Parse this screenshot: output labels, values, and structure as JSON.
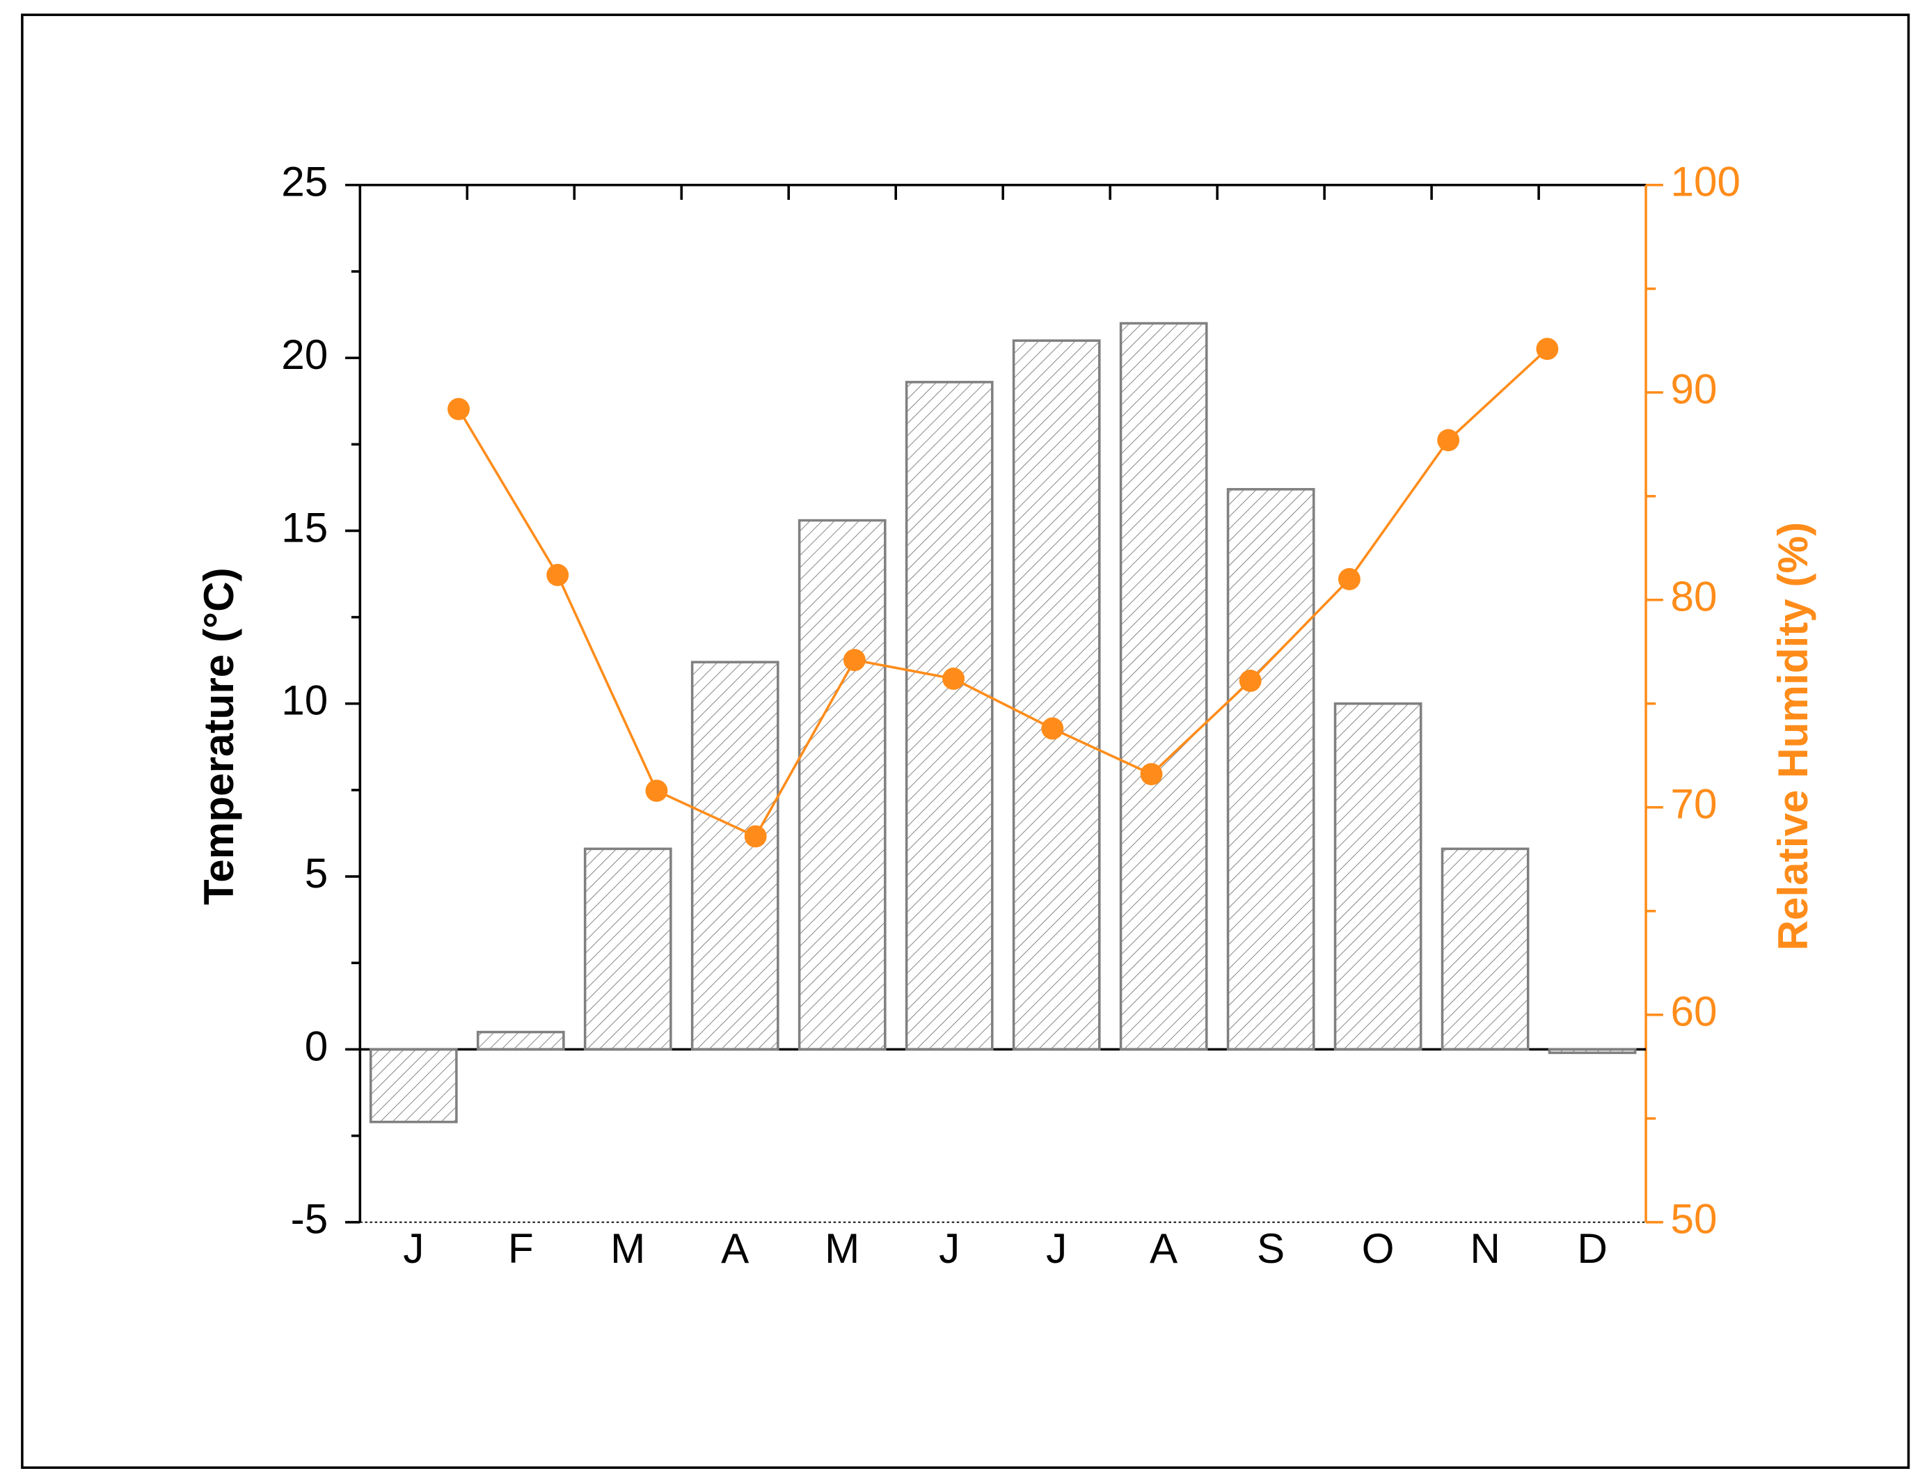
{
  "chart_data": {
    "type": "bar",
    "categories": [
      "J",
      "F",
      "M",
      "A",
      "M",
      "J",
      "J",
      "A",
      "S",
      "O",
      "N",
      "D"
    ],
    "y_label": "Temperature (°C)",
    "y2_label": "Relative Humidity (%)",
    "ylim": [
      -5,
      25
    ],
    "yticks": [
      -5,
      0,
      5,
      10,
      15,
      20,
      25
    ],
    "y2lim": [
      50,
      100
    ],
    "y2ticks": [
      50,
      60,
      70,
      80,
      90,
      100
    ],
    "series": [
      {
        "type": "bar",
        "color": "#808080",
        "values": [
          -2.1,
          0.5,
          5.8,
          11.2,
          15.3,
          19.3,
          20.5,
          21.0,
          16.2,
          10.0,
          5.8,
          -0.1
        ]
      },
      {
        "type": "line",
        "axis": "y2",
        "color": "#ff8c1a",
        "values": [
          89.2,
          81.2,
          70.8,
          68.6,
          77.1,
          76.2,
          73.8,
          71.6,
          76.1,
          81.0,
          87.7,
          92.1
        ]
      }
    ]
  }
}
